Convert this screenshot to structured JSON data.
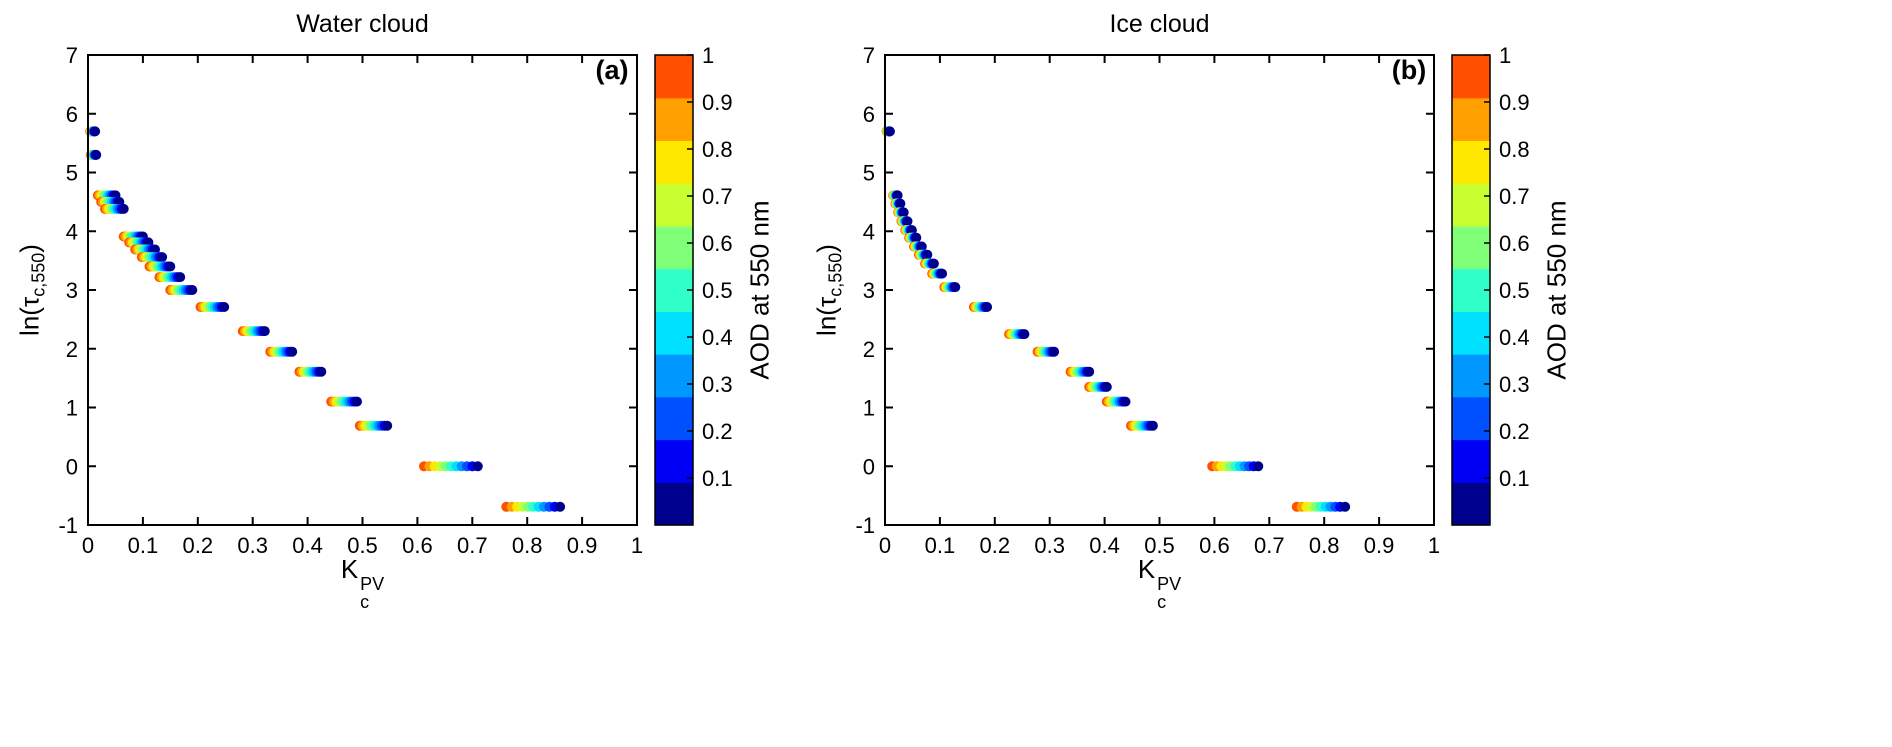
{
  "figure": {
    "background": "#ffffff",
    "axis_color": "#000000",
    "xlabel": {
      "base": "K",
      "sup": "PV",
      "sub": "c"
    },
    "ylabel": {
      "pre": "ln(τ",
      "sub": "c,550",
      "post": ")"
    }
  },
  "chart_data": [
    {
      "type": "scatter",
      "title": "Water cloud",
      "panel_label": "(a)",
      "xlabel": "K_c^PV",
      "ylabel": "ln(τ_c,550)",
      "xlim": [
        0,
        1
      ],
      "ylim": [
        -1,
        7
      ],
      "xticks": [
        0,
        0.1,
        0.2,
        0.3,
        0.4,
        0.5,
        0.6,
        0.7,
        0.8,
        0.9,
        1
      ],
      "xtick_labels": [
        "0",
        "0.1",
        "0.2",
        "0.3",
        "0.4",
        "0.5",
        "0.6",
        "0.7",
        "0.8",
        "0.9",
        "1"
      ],
      "yticks": [
        -1,
        0,
        1,
        2,
        3,
        4,
        5,
        6,
        7
      ],
      "ytick_labels": [
        "-1",
        "0",
        "1",
        "2",
        "3",
        "4",
        "5",
        "6",
        "7"
      ],
      "grid": false,
      "colorbar": {
        "label": "AOD at 550 nm",
        "range": [
          0,
          1
        ],
        "ticks": [
          0.1,
          0.2,
          0.3,
          0.4,
          0.5,
          0.6,
          0.7,
          0.8,
          0.9,
          1
        ],
        "tick_labels": [
          "0.1",
          "0.2",
          "0.3",
          "0.4",
          "0.5",
          "0.6",
          "0.7",
          "0.8",
          "0.9",
          "1"
        ]
      },
      "aod_values": [
        0.05,
        0.1,
        0.2,
        0.3,
        0.4,
        0.5,
        0.6,
        0.7,
        0.8,
        0.9,
        1
      ],
      "aod_colors": [
        "#00008F",
        "#0000F5",
        "#0050FF",
        "#0098FF",
        "#00E0FF",
        "#30FFC8",
        "#80FF78",
        "#C8FF30",
        "#FFE800",
        "#FFA000",
        "#FF4F00"
      ],
      "clusters": [
        {
          "lntau": 5.7,
          "kc_left": 0.004,
          "kc_right": 0.013
        },
        {
          "lntau": 5.3,
          "kc_left": 0.005,
          "kc_right": 0.015
        },
        {
          "lntau": 4.61,
          "kc_left": 0.018,
          "kc_right": 0.05
        },
        {
          "lntau": 4.5,
          "kc_left": 0.024,
          "kc_right": 0.057
        },
        {
          "lntau": 4.38,
          "kc_left": 0.031,
          "kc_right": 0.065
        },
        {
          "lntau": 3.91,
          "kc_left": 0.065,
          "kc_right": 0.1
        },
        {
          "lntau": 3.81,
          "kc_left": 0.075,
          "kc_right": 0.11
        },
        {
          "lntau": 3.69,
          "kc_left": 0.086,
          "kc_right": 0.122
        },
        {
          "lntau": 3.56,
          "kc_left": 0.098,
          "kc_right": 0.135
        },
        {
          "lntau": 3.4,
          "kc_left": 0.112,
          "kc_right": 0.15
        },
        {
          "lntau": 3.22,
          "kc_left": 0.13,
          "kc_right": 0.168
        },
        {
          "lntau": 3.0,
          "kc_left": 0.15,
          "kc_right": 0.19
        },
        {
          "lntau": 2.71,
          "kc_left": 0.205,
          "kc_right": 0.248
        },
        {
          "lntau": 2.3,
          "kc_left": 0.282,
          "kc_right": 0.322
        },
        {
          "lntau": 1.95,
          "kc_left": 0.332,
          "kc_right": 0.372
        },
        {
          "lntau": 1.61,
          "kc_left": 0.385,
          "kc_right": 0.425
        },
        {
          "lntau": 1.1,
          "kc_left": 0.443,
          "kc_right": 0.49
        },
        {
          "lntau": 0.69,
          "kc_left": 0.495,
          "kc_right": 0.545
        },
        {
          "lntau": 0.0,
          "kc_left": 0.612,
          "kc_right": 0.71
        },
        {
          "lntau": -0.69,
          "kc_left": 0.762,
          "kc_right": 0.86
        }
      ]
    },
    {
      "type": "scatter",
      "title": "Ice cloud",
      "panel_label": "(b)",
      "xlabel": "K_c^PV",
      "ylabel": "ln(τ_c,550)",
      "xlim": [
        0,
        1
      ],
      "ylim": [
        -1,
        7
      ],
      "xticks": [
        0,
        0.1,
        0.2,
        0.3,
        0.4,
        0.5,
        0.6,
        0.7,
        0.8,
        0.9,
        1
      ],
      "xtick_labels": [
        "0",
        "0.1",
        "0.2",
        "0.3",
        "0.4",
        "0.5",
        "0.6",
        "0.7",
        "0.8",
        "0.9",
        "1"
      ],
      "yticks": [
        -1,
        0,
        1,
        2,
        3,
        4,
        5,
        6,
        7
      ],
      "ytick_labels": [
        "-1",
        "0",
        "1",
        "2",
        "3",
        "4",
        "5",
        "6",
        "7"
      ],
      "grid": false,
      "colorbar": {
        "label": "AOD at 550 nm",
        "range": [
          0,
          1
        ],
        "ticks": [
          0.1,
          0.2,
          0.3,
          0.4,
          0.5,
          0.6,
          0.7,
          0.8,
          0.9,
          1
        ],
        "tick_labels": [
          "0.1",
          "0.2",
          "0.3",
          "0.4",
          "0.5",
          "0.6",
          "0.7",
          "0.8",
          "0.9",
          "1"
        ]
      },
      "aod_values": [
        0.05,
        0.1,
        0.2,
        0.3,
        0.4,
        0.5,
        0.6,
        0.7,
        0.8,
        0.9,
        1
      ],
      "aod_colors": [
        "#00008F",
        "#0000F5",
        "#0050FF",
        "#0098FF",
        "#00E0FF",
        "#30FFC8",
        "#80FF78",
        "#C8FF30",
        "#FFE800",
        "#FFA000",
        "#FF4F00"
      ],
      "clusters": [
        {
          "lntau": 5.7,
          "kc_left": 0.003,
          "kc_right": 0.009
        },
        {
          "lntau": 4.61,
          "kc_left": 0.015,
          "kc_right": 0.023
        },
        {
          "lntau": 4.47,
          "kc_left": 0.019,
          "kc_right": 0.028
        },
        {
          "lntau": 4.32,
          "kc_left": 0.024,
          "kc_right": 0.034
        },
        {
          "lntau": 4.17,
          "kc_left": 0.03,
          "kc_right": 0.041
        },
        {
          "lntau": 4.02,
          "kc_left": 0.037,
          "kc_right": 0.049
        },
        {
          "lntau": 3.89,
          "kc_left": 0.044,
          "kc_right": 0.057
        },
        {
          "lntau": 3.74,
          "kc_left": 0.053,
          "kc_right": 0.067
        },
        {
          "lntau": 3.6,
          "kc_left": 0.062,
          "kc_right": 0.077
        },
        {
          "lntau": 3.45,
          "kc_left": 0.073,
          "kc_right": 0.089
        },
        {
          "lntau": 3.28,
          "kc_left": 0.086,
          "kc_right": 0.104
        },
        {
          "lntau": 3.05,
          "kc_left": 0.108,
          "kc_right": 0.128
        },
        {
          "lntau": 2.71,
          "kc_left": 0.162,
          "kc_right": 0.186
        },
        {
          "lntau": 2.25,
          "kc_left": 0.226,
          "kc_right": 0.254
        },
        {
          "lntau": 1.95,
          "kc_left": 0.278,
          "kc_right": 0.308
        },
        {
          "lntau": 1.61,
          "kc_left": 0.338,
          "kc_right": 0.372
        },
        {
          "lntau": 1.35,
          "kc_left": 0.372,
          "kc_right": 0.404
        },
        {
          "lntau": 1.1,
          "kc_left": 0.404,
          "kc_right": 0.438
        },
        {
          "lntau": 0.69,
          "kc_left": 0.448,
          "kc_right": 0.488
        },
        {
          "lntau": 0.0,
          "kc_left": 0.596,
          "kc_right": 0.68
        },
        {
          "lntau": -0.69,
          "kc_left": 0.75,
          "kc_right": 0.838
        }
      ]
    }
  ]
}
